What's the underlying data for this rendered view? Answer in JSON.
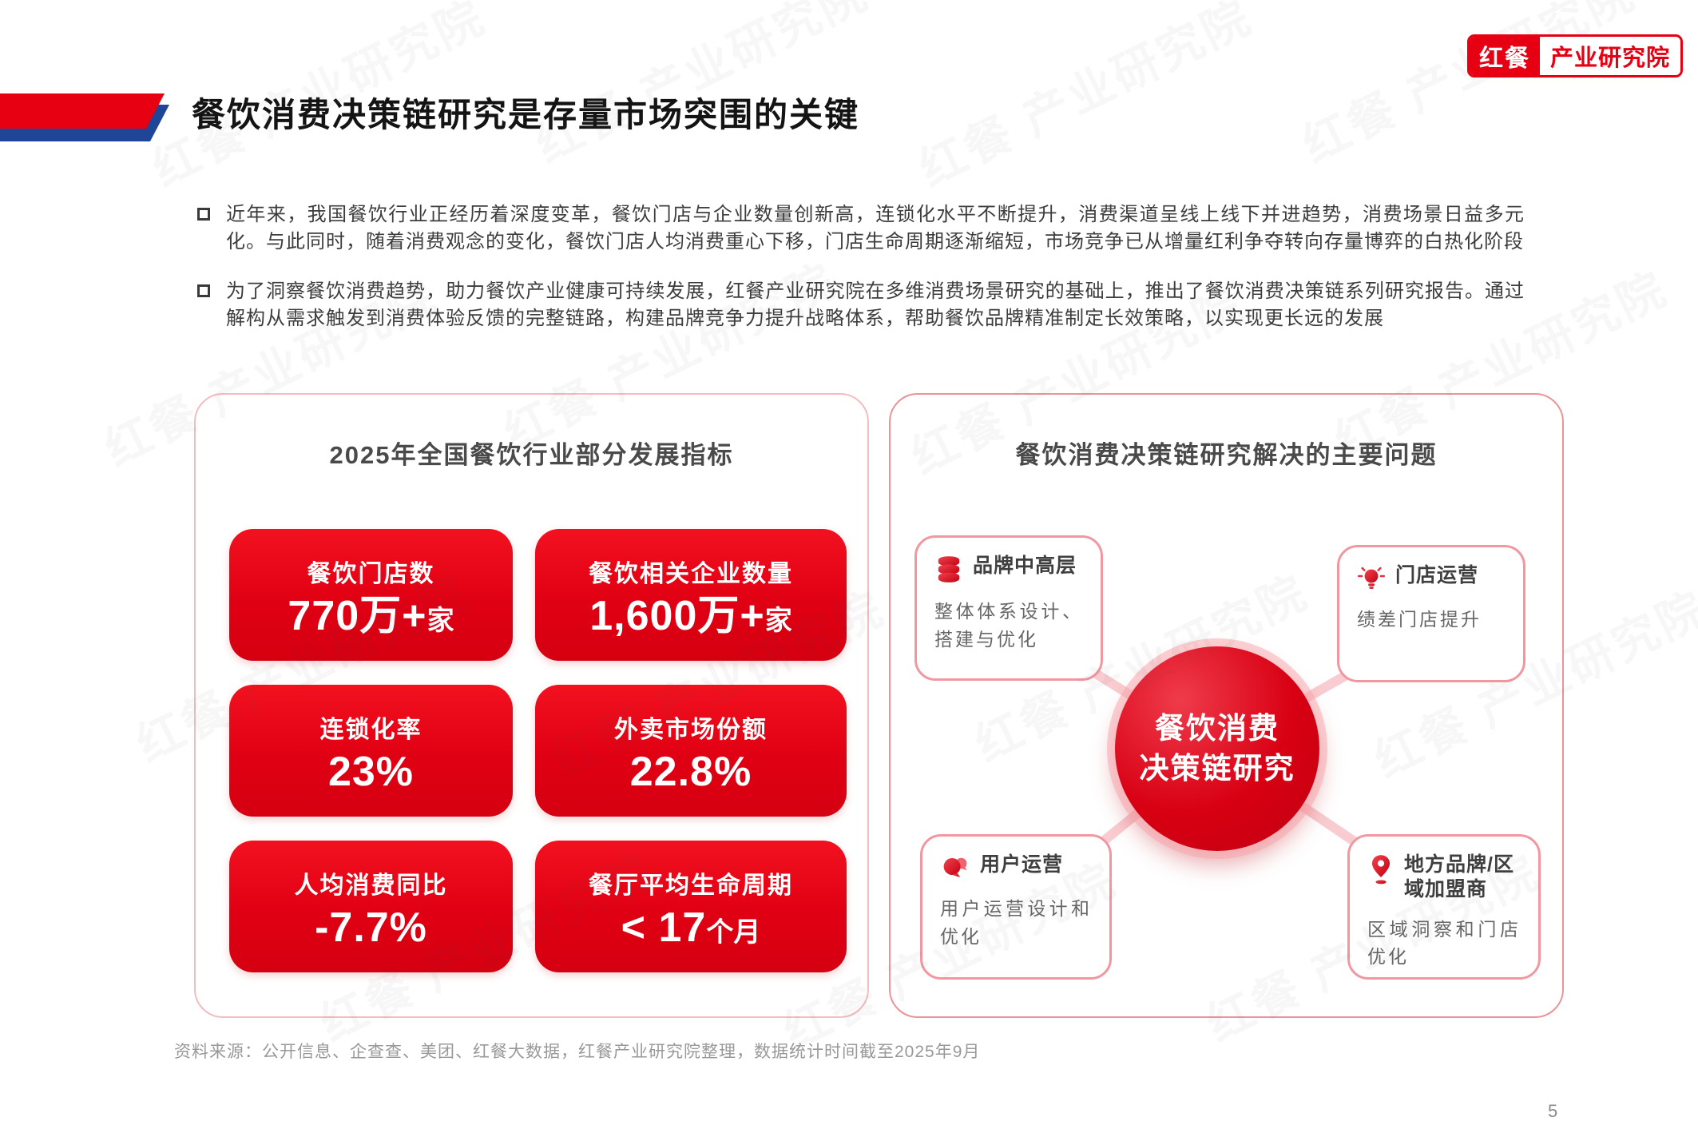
{
  "page": {
    "watermark_text": "红餐 产业研究院",
    "source_note": "资料来源：公开信息、企查查、美团、红餐大数据，红餐产业研究院整理，数据统计时间截至2025年9月",
    "page_number": "5"
  },
  "logo": {
    "brand": "红餐",
    "suffix": "产业研究院"
  },
  "header": {
    "title": "餐饮消费决策链研究是存量市场突围的关键"
  },
  "bullets": [
    {
      "text": "近年来，我国餐饮行业正经历着深度变革，餐饮门店与企业数量创新高，连锁化水平不断提升，消费渠道呈线上线下并进趋势，消费场景日益多元化。与此同时，随着消费观念的变化，餐饮门店人均消费重心下移，门店生命周期逐渐缩短，市场竞争已从增量红利争夺转向存量博弈的白热化阶段"
    },
    {
      "text": "为了洞察餐饮消费趋势，助力餐饮产业健康可持续发展，红餐产业研究院在多维消费场景研究的基础上，推出了餐饮消费决策链系列研究报告。通过解构从需求触发到消费体验反馈的完整链路，构建品牌竞争力提升战略体系，帮助餐饮品牌精准制定长效策略，以实现更长远的发展"
    }
  ],
  "left_panel": {
    "title": "2025年全国餐饮行业部分发展指标",
    "stats": [
      {
        "label": "餐饮门店数",
        "value_main": "770万+",
        "value_sub": "家"
      },
      {
        "label": "餐饮相关企业数量",
        "value_main": "1,600万+",
        "value_sub": "家"
      },
      {
        "label": "连锁化率",
        "value_main": "23%",
        "value_sub": ""
      },
      {
        "label": "外卖市场份额",
        "value_main": "22.8%",
        "value_sub": ""
      },
      {
        "label": "人均消费同比",
        "value_main": "-7.7%",
        "value_sub": ""
      },
      {
        "label": "餐厅平均生命周期",
        "value_main": "< 17",
        "value_sub": "个月"
      }
    ]
  },
  "right_panel": {
    "title": "餐饮消费决策链研究解决的主要问题",
    "center": {
      "line1": "餐饮消费",
      "line2": "决策链研究"
    },
    "cards": [
      {
        "icon": "database-icon",
        "title": "品牌中高层",
        "body": "整体体系设计、搭建与优化"
      },
      {
        "icon": "bulb-icon",
        "title": "门店运营",
        "body": "绩差门店提升"
      },
      {
        "icon": "chat-icon",
        "title": "用户运营",
        "body": "用户运营设计和优化"
      },
      {
        "icon": "pin-icon",
        "title": "地方品牌/区域加盟商",
        "body": "区域洞察和门店优化"
      }
    ]
  },
  "colors": {
    "brand_red": "#e60012",
    "accent_blue": "#1e4598",
    "panel_border_pink": "#f4bcc1",
    "card_border_pink": "#f297a0"
  }
}
